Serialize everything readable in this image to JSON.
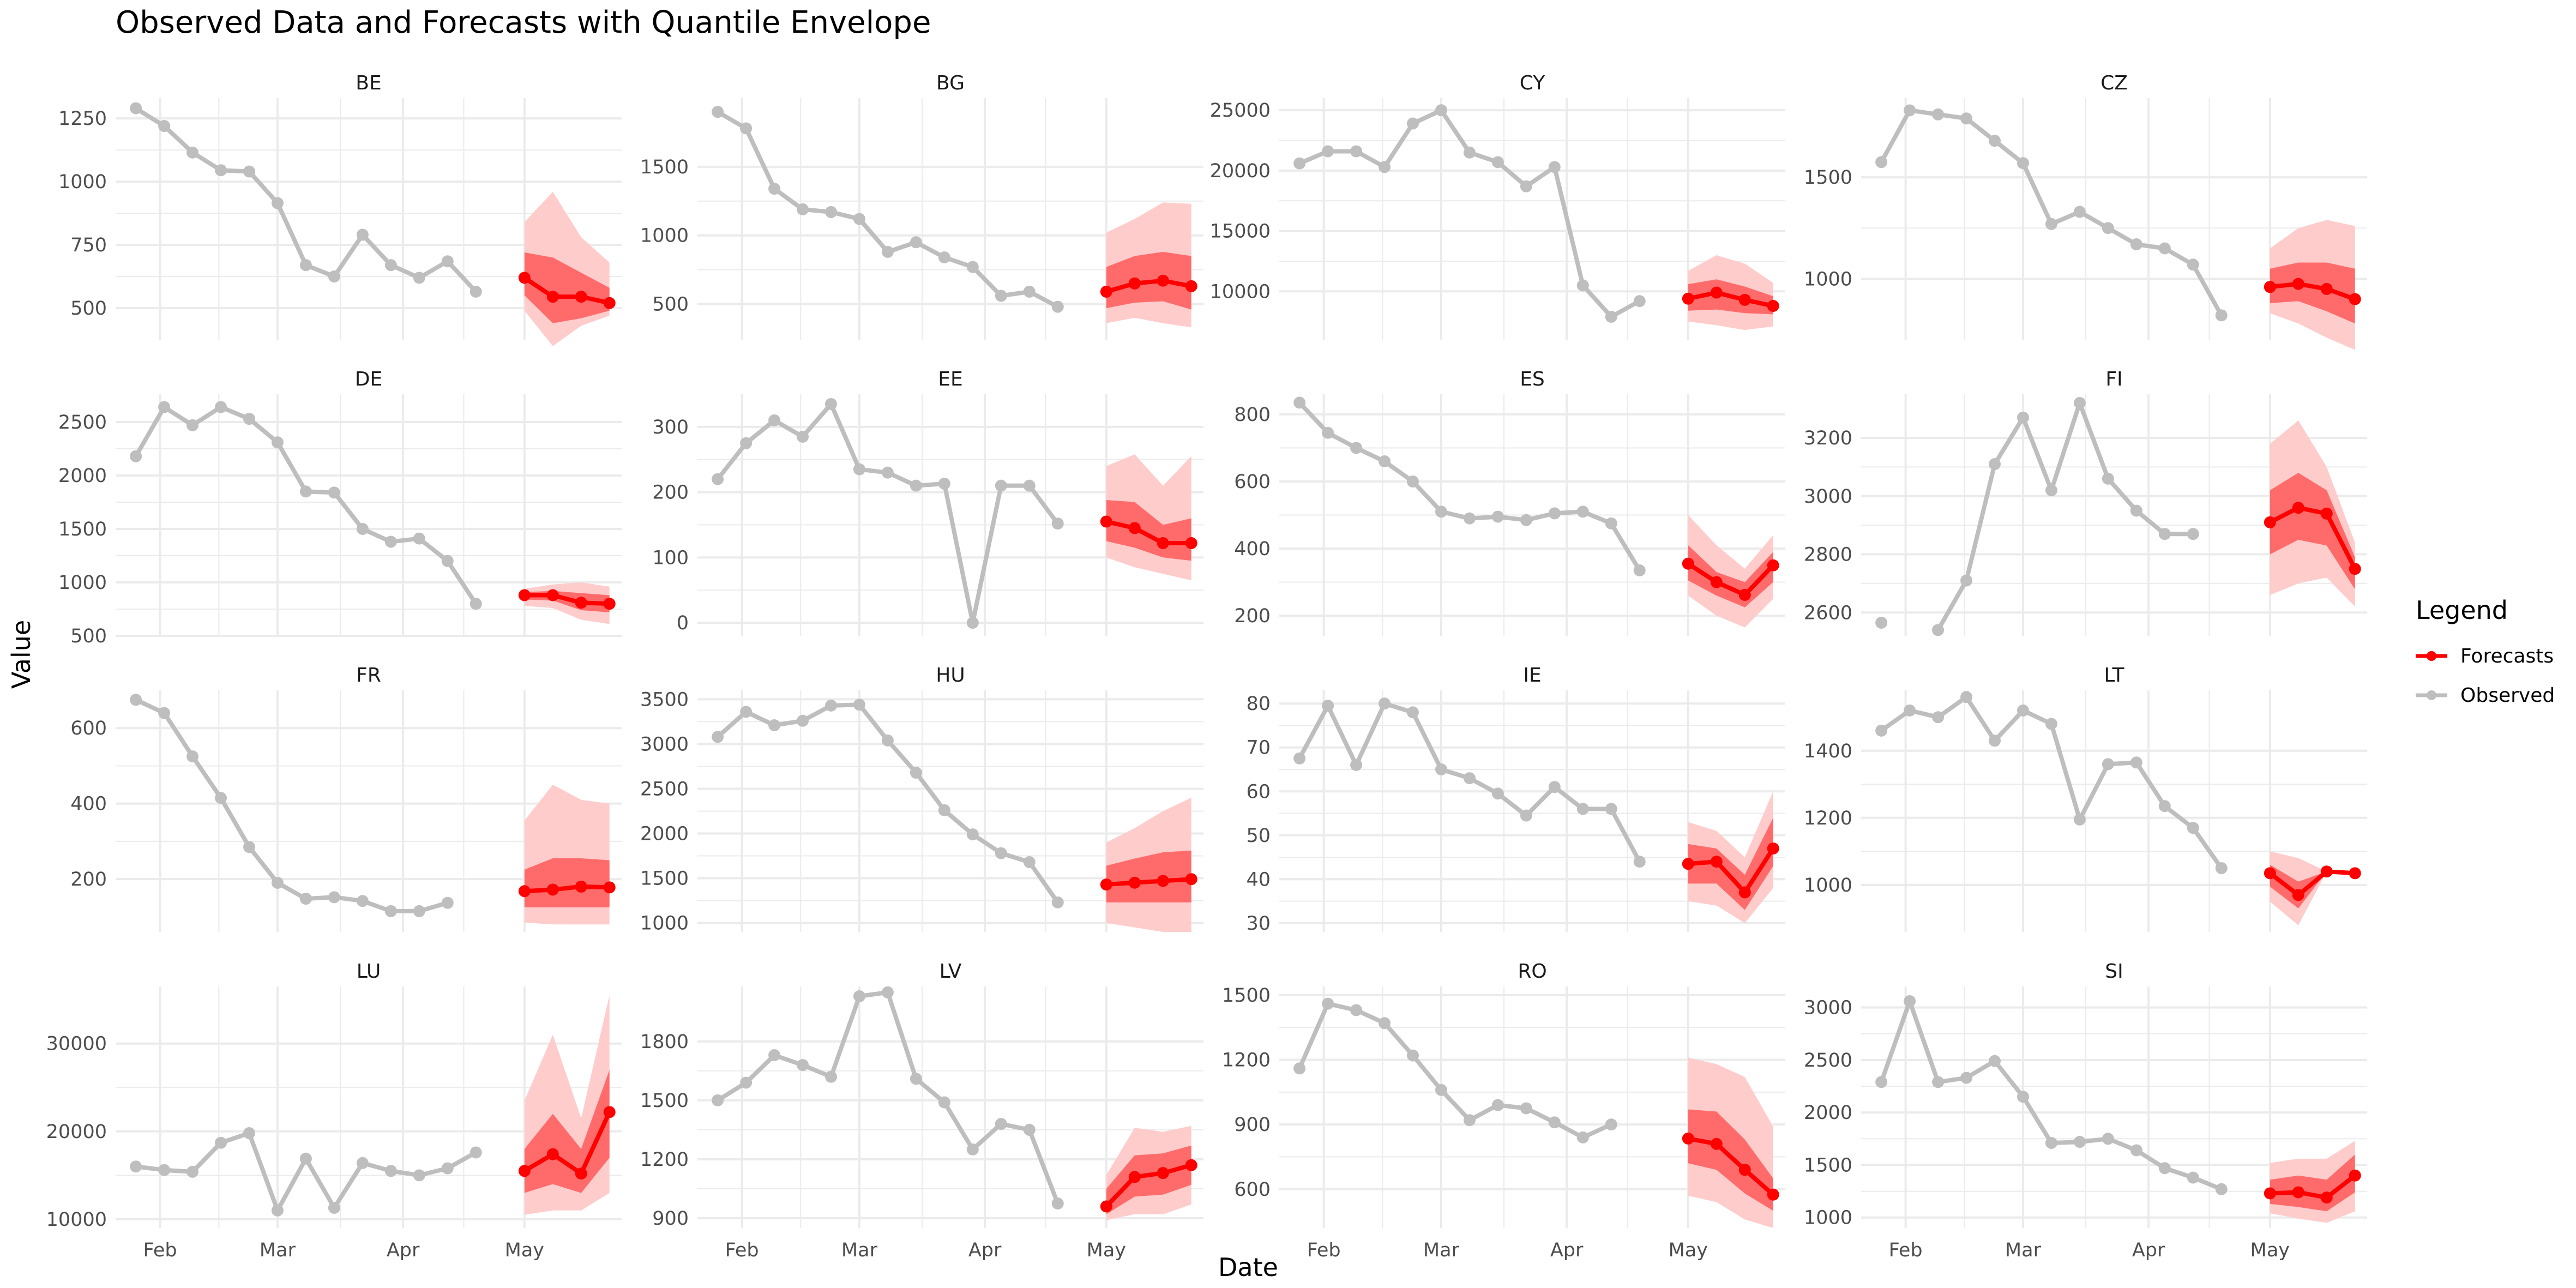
{
  "chart_data": {
    "type": "line",
    "title": "Observed Data and Forecasts with Quantile Envelope",
    "xlabel": "Date",
    "ylabel": "Value",
    "legend": {
      "title": "Legend",
      "position": "right",
      "entries": [
        {
          "name": "Forecasts",
          "color": "#ff0000"
        },
        {
          "name": "Observed",
          "color": "#bebebe"
        }
      ]
    },
    "grid": true,
    "x_tick_labels": [
      "Feb",
      "Mar",
      "Apr",
      "May"
    ],
    "x_tick_dates": [
      "2020-02-01",
      "2020-03-01",
      "2020-04-01",
      "2020-05-01"
    ],
    "xlim": [
      "2020-01-21",
      "2020-05-25"
    ],
    "observed_dates": [
      "2020-01-26",
      "2020-02-02",
      "2020-02-09",
      "2020-02-16",
      "2020-02-23",
      "2020-03-01",
      "2020-03-08",
      "2020-03-15",
      "2020-03-22",
      "2020-03-29",
      "2020-04-05",
      "2020-04-12",
      "2020-04-19",
      "2020-04-26"
    ],
    "forecast_dates": [
      "2020-05-01",
      "2020-05-08",
      "2020-05-15",
      "2020-05-22"
    ],
    "colors": {
      "observed": "#bebebe",
      "forecast": "#ff0000",
      "band_outer": "#ffcccc",
      "band_inner": "#ff6b6b",
      "grid": "#ebebeb"
    },
    "panels": [
      {
        "name": "BE",
        "yticks": [
          500,
          750,
          1000,
          1250
        ],
        "ylim": [
          375,
          1330
        ],
        "observed": [
          1290,
          1220,
          1115,
          1045,
          1040,
          915,
          670,
          625,
          790,
          670,
          620,
          685,
          565,
          null
        ],
        "forecast": [
          620,
          545,
          545,
          520
        ],
        "q_outer": [
          [
            490,
            840
          ],
          [
            350,
            960
          ],
          [
            430,
            780
          ],
          [
            470,
            680
          ]
        ],
        "q_inner": [
          [
            550,
            720
          ],
          [
            440,
            700
          ],
          [
            460,
            640
          ],
          [
            490,
            580
          ]
        ]
      },
      {
        "name": "BG",
        "yticks": [
          500,
          1000,
          1500
        ],
        "ylim": [
          240,
          2000
        ],
        "observed": [
          1900,
          1780,
          1340,
          1190,
          1170,
          1120,
          880,
          950,
          840,
          770,
          560,
          590,
          480,
          null
        ],
        "forecast": [
          590,
          650,
          670,
          630
        ],
        "q_outer": [
          [
            360,
            1020
          ],
          [
            400,
            1120
          ],
          [
            360,
            1240
          ],
          [
            330,
            1230
          ]
        ],
        "q_inner": [
          [
            470,
            770
          ],
          [
            510,
            850
          ],
          [
            520,
            880
          ],
          [
            460,
            850
          ]
        ]
      },
      {
        "name": "CY",
        "yticks": [
          10000,
          15000,
          20000,
          25000
        ],
        "ylim": [
          6000,
          26000
        ],
        "observed": [
          20600,
          21600,
          21600,
          20300,
          23900,
          25000,
          21500,
          20700,
          18700,
          20300,
          10500,
          7900,
          9200,
          null
        ],
        "forecast": [
          9400,
          9900,
          9300,
          8800
        ],
        "q_outer": [
          [
            7500,
            11700
          ],
          [
            7200,
            13000
          ],
          [
            6800,
            12300
          ],
          [
            7100,
            10700
          ]
        ],
        "q_inner": [
          [
            8400,
            10600
          ],
          [
            8500,
            11000
          ],
          [
            8200,
            10400
          ],
          [
            8100,
            9600
          ]
        ]
      },
      {
        "name": "CZ",
        "yticks": [
          1000,
          1500
        ],
        "ylim": [
          700,
          1890
        ],
        "observed": [
          1575,
          1830,
          1810,
          1790,
          1680,
          1570,
          1270,
          1330,
          1250,
          1170,
          1150,
          1070,
          820,
          null
        ],
        "forecast": [
          960,
          975,
          950,
          900
        ],
        "q_outer": [
          [
            830,
            1150
          ],
          [
            780,
            1250
          ],
          [
            710,
            1290
          ],
          [
            650,
            1260
          ]
        ],
        "q_inner": [
          [
            880,
            1050
          ],
          [
            890,
            1080
          ],
          [
            840,
            1080
          ],
          [
            780,
            1050
          ]
        ]
      },
      {
        "name": "DE",
        "yticks": [
          500,
          1000,
          1500,
          2000,
          2500
        ],
        "ylim": [
          500,
          2760
        ],
        "observed": [
          2180,
          2640,
          2470,
          2640,
          2530,
          2310,
          1850,
          1840,
          1500,
          1380,
          1410,
          1200,
          800,
          null
        ],
        "forecast": [
          880,
          880,
          810,
          800
        ],
        "q_outer": [
          [
            780,
            940
          ],
          [
            760,
            980
          ],
          [
            650,
            1000
          ],
          [
            610,
            960
          ]
        ],
        "q_inner": [
          [
            840,
            910
          ],
          [
            830,
            920
          ],
          [
            740,
            900
          ],
          [
            720,
            880
          ]
        ]
      },
      {
        "name": "EE",
        "yticks": [
          0,
          100,
          200,
          300
        ],
        "ylim": [
          -20,
          350
        ],
        "observed": [
          220,
          275,
          310,
          285,
          335,
          235,
          230,
          210,
          213,
          0,
          210,
          210,
          152,
          null
        ],
        "forecast": [
          155,
          145,
          122,
          122
        ],
        "q_outer": [
          [
            100,
            240
          ],
          [
            85,
            258
          ],
          [
            75,
            210
          ],
          [
            65,
            255
          ]
        ],
        "q_inner": [
          [
            125,
            188
          ],
          [
            115,
            185
          ],
          [
            100,
            150
          ],
          [
            95,
            160
          ]
        ]
      },
      {
        "name": "ES",
        "yticks": [
          200,
          400,
          600,
          800
        ],
        "ylim": [
          140,
          860
        ],
        "observed": [
          835,
          745,
          700,
          660,
          600,
          510,
          490,
          495,
          485,
          505,
          510,
          475,
          335,
          null
        ],
        "forecast": [
          355,
          300,
          262,
          350
        ],
        "q_outer": [
          [
            260,
            500
          ],
          [
            200,
            410
          ],
          [
            165,
            340
          ],
          [
            250,
            440
          ]
        ],
        "q_inner": [
          [
            305,
            410
          ],
          [
            260,
            330
          ],
          [
            225,
            300
          ],
          [
            300,
            390
          ]
        ]
      },
      {
        "name": "FI",
        "yticks": [
          2600,
          2800,
          3000,
          3200
        ],
        "ylim": [
          2520,
          3350
        ],
        "observed": [
          2565,
          null,
          2540,
          2710,
          3110,
          3270,
          3020,
          3320,
          3060,
          2950,
          2870,
          2870,
          null,
          null
        ],
        "forecast": [
          2910,
          2960,
          2940,
          2750
        ],
        "q_outer": [
          [
            2660,
            3180
          ],
          [
            2700,
            3260
          ],
          [
            2720,
            3100
          ],
          [
            2620,
            2840
          ]
        ],
        "q_inner": [
          [
            2800,
            3020
          ],
          [
            2850,
            3080
          ],
          [
            2830,
            3020
          ],
          [
            2680,
            2790
          ]
        ]
      },
      {
        "name": "FR",
        "yticks": [
          200,
          400,
          600
        ],
        "ylim": [
          60,
          700
        ],
        "observed": [
          675,
          640,
          525,
          415,
          285,
          190,
          148,
          152,
          142,
          115,
          115,
          137,
          null,
          null
        ],
        "forecast": [
          168,
          172,
          180,
          178
        ],
        "q_outer": [
          [
            85,
            355
          ],
          [
            80,
            450
          ],
          [
            80,
            410
          ],
          [
            80,
            400
          ]
        ],
        "q_inner": [
          [
            125,
            225
          ],
          [
            125,
            255
          ],
          [
            125,
            255
          ],
          [
            125,
            250
          ]
        ]
      },
      {
        "name": "HU",
        "yticks": [
          1000,
          1500,
          2000,
          2500,
          3000,
          3500
        ],
        "ylim": [
          900,
          3600
        ],
        "observed": [
          3080,
          3360,
          3210,
          3260,
          3430,
          3440,
          3040,
          2680,
          2260,
          1990,
          1780,
          1680,
          1230,
          null
        ],
        "forecast": [
          1430,
          1450,
          1470,
          1490
        ],
        "q_outer": [
          [
            1000,
            1900
          ],
          [
            950,
            2060
          ],
          [
            900,
            2250
          ],
          [
            900,
            2400
          ]
        ],
        "q_inner": [
          [
            1230,
            1640
          ],
          [
            1230,
            1720
          ],
          [
            1230,
            1790
          ],
          [
            1230,
            1810
          ]
        ]
      },
      {
        "name": "IE",
        "yticks": [
          30,
          40,
          50,
          60,
          70,
          80
        ],
        "ylim": [
          28,
          83
        ],
        "observed": [
          67.5,
          79.5,
          66,
          80,
          78,
          65,
          63,
          59.5,
          54.5,
          61,
          56,
          56,
          44,
          null
        ],
        "forecast": [
          43.5,
          44,
          37,
          47
        ],
        "q_outer": [
          [
            35,
            53
          ],
          [
            34,
            51
          ],
          [
            30,
            45
          ],
          [
            38,
            60
          ]
        ],
        "q_inner": [
          [
            39,
            48
          ],
          [
            39,
            47
          ],
          [
            33,
            41
          ],
          [
            43,
            54
          ]
        ]
      },
      {
        "name": "LT",
        "yticks": [
          1000,
          1200,
          1400
        ],
        "ylim": [
          860,
          1580
        ],
        "observed": [
          1460,
          1520,
          1500,
          1560,
          1430,
          1520,
          1480,
          1195,
          1360,
          1365,
          1235,
          1170,
          1050,
          null
        ],
        "forecast": [
          1035,
          970,
          1040,
          1035
        ],
        "q_outer": [
          [
            950,
            1100
          ],
          [
            880,
            1080
          ],
          [
            1040,
            1040
          ],
          [
            1035,
            1035
          ]
        ],
        "q_inner": [
          [
            995,
            1060
          ],
          [
            930,
            1010
          ],
          [
            1040,
            1040
          ],
          [
            1035,
            1035
          ]
        ]
      },
      {
        "name": "LU",
        "yticks": [
          10000,
          20000,
          30000
        ],
        "ylim": [
          9000,
          36500
        ],
        "observed": [
          16000,
          15600,
          15400,
          18700,
          19800,
          11000,
          16900,
          11300,
          16400,
          15500,
          15000,
          15800,
          17600,
          null
        ],
        "forecast": [
          15500,
          17400,
          15200,
          22200
        ],
        "q_outer": [
          [
            10500,
            23500
          ],
          [
            11000,
            31000
          ],
          [
            11000,
            21500
          ],
          [
            13000,
            35500
          ]
        ],
        "q_inner": [
          [
            13000,
            18000
          ],
          [
            14000,
            22000
          ],
          [
            13000,
            18000
          ],
          [
            17000,
            27000
          ]
        ]
      },
      {
        "name": "LV",
        "yticks": [
          900,
          1200,
          1500,
          1800
        ],
        "ylim": [
          850,
          2080
        ],
        "observed": [
          1500,
          1590,
          1730,
          1680,
          1620,
          2030,
          2050,
          1610,
          1490,
          1250,
          1380,
          1350,
          975,
          null
        ],
        "forecast": [
          960,
          1110,
          1130,
          1170
        ],
        "q_outer": [
          [
            890,
            1120
          ],
          [
            920,
            1360
          ],
          [
            920,
            1340
          ],
          [
            970,
            1370
          ]
        ],
        "q_inner": [
          [
            920,
            1050
          ],
          [
            1010,
            1220
          ],
          [
            1020,
            1230
          ],
          [
            1070,
            1270
          ]
        ]
      },
      {
        "name": "RO",
        "yticks": [
          600,
          900,
          1200,
          1500
        ],
        "ylim": [
          420,
          1540
        ],
        "observed": [
          1160,
          1460,
          1430,
          1370,
          1220,
          1060,
          920,
          990,
          975,
          910,
          840,
          900,
          null,
          null
        ],
        "forecast": [
          835,
          810,
          690,
          575
        ],
        "q_outer": [
          [
            570,
            1210
          ],
          [
            540,
            1180
          ],
          [
            460,
            1120
          ],
          [
            420,
            890
          ]
        ],
        "q_inner": [
          [
            720,
            970
          ],
          [
            690,
            960
          ],
          [
            580,
            830
          ],
          [
            500,
            650
          ]
        ]
      },
      {
        "name": "SI",
        "yticks": [
          1000,
          1500,
          2000,
          2500,
          3000
        ],
        "ylim": [
          900,
          3200
        ],
        "observed": [
          2290,
          3060,
          2290,
          2330,
          2490,
          2150,
          1710,
          1720,
          1750,
          1640,
          1470,
          1380,
          1270,
          null
        ],
        "forecast": [
          1230,
          1240,
          1190,
          1400
        ],
        "q_outer": [
          [
            1040,
            1520
          ],
          [
            990,
            1560
          ],
          [
            950,
            1560
          ],
          [
            1060,
            1730
          ]
        ],
        "q_inner": [
          [
            1130,
            1360
          ],
          [
            1100,
            1400
          ],
          [
            1060,
            1360
          ],
          [
            1240,
            1600
          ]
        ]
      }
    ]
  }
}
